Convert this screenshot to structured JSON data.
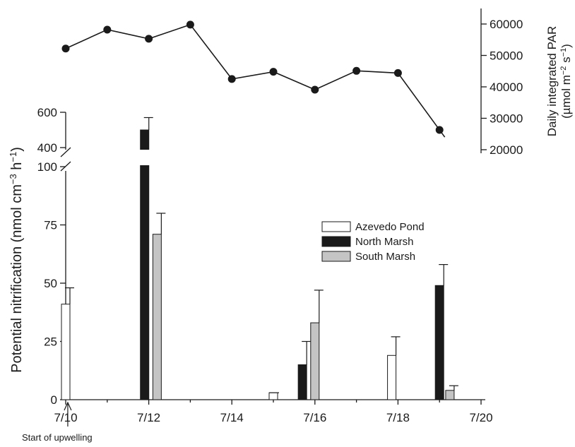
{
  "chart_data": [
    {
      "type": "bar",
      "ylabel": "Potential nitrification (nmol cm⁻³ h⁻¹)",
      "x_ticks": [
        "7/10",
        "7/12",
        "7/14",
        "7/16",
        "7/18",
        "7/20"
      ],
      "x_range": [
        10,
        20
      ],
      "y_axis": {
        "lower_range": [
          0,
          100
        ],
        "lower_ticks": [
          "0",
          "25",
          "50",
          "75",
          "100"
        ],
        "upper_range": [
          400,
          600
        ],
        "upper_ticks": [
          "400",
          "600"
        ],
        "break": true
      },
      "legend": {
        "placement": "center-right"
      },
      "series": [
        {
          "name": "Azevedo Pond",
          "color": "#ffffff",
          "points": [
            {
              "x": 10.0,
              "value": 41,
              "error": 7
            },
            {
              "x": 15.0,
              "value": 3,
              "error": 0
            },
            {
              "x": 17.85,
              "value": 19,
              "error": 8
            }
          ]
        },
        {
          "name": "North Marsh",
          "color": "#1a1a1a",
          "points": [
            {
              "x": 11.9,
              "value": 500,
              "error": 70
            },
            {
              "x": 15.7,
              "value": 15,
              "error": 10
            },
            {
              "x": 19.0,
              "value": 49,
              "error": 9
            }
          ]
        },
        {
          "name": "South Marsh",
          "color": "#c4c4c4",
          "points": [
            {
              "x": 12.2,
              "value": 71,
              "error": 9
            },
            {
              "x": 16.0,
              "value": 33,
              "error": 14
            },
            {
              "x": 19.25,
              "value": 4,
              "error": 2
            }
          ]
        }
      ],
      "annotations": [
        {
          "text": "Start of upwelling",
          "x": 10.05
        }
      ]
    },
    {
      "type": "line",
      "ylabel": "Daily integrated PAR (µmol m⁻² s⁻¹)",
      "y_axis_side": "right",
      "ylim": [
        20000,
        65000
      ],
      "y_ticks": [
        "20000",
        "30000",
        "40000",
        "50000",
        "60000"
      ],
      "x": [
        10.0,
        11.0,
        12.0,
        13.0,
        14.0,
        15.0,
        16.0,
        17.0,
        18.0,
        19.0
      ],
      "values": [
        52200,
        58200,
        55300,
        59800,
        42500,
        44800,
        39100,
        45100,
        44400,
        26300
      ],
      "marker": "circle"
    }
  ],
  "units": {
    "left_main": "Potential nitrification (nmol cm",
    "left_sup1": "−3",
    "left_mid": " h",
    "left_sup2": "−1",
    "left_end": ")",
    "right_line1": "Daily integrated PAR",
    "right_line2_a": "(µmol m",
    "right_line2_sup1": "−2",
    "right_line2_b": " s",
    "right_line2_sup2": "−1",
    "right_line2_c": ")"
  }
}
